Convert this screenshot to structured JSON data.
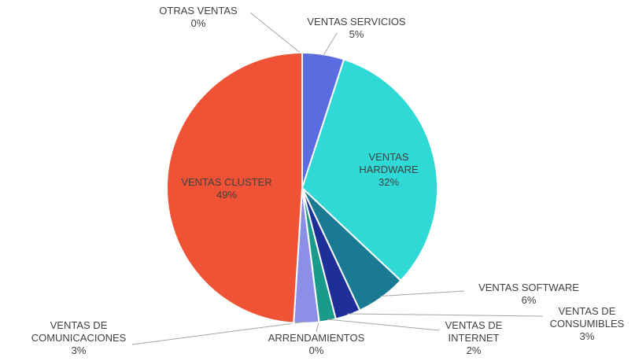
{
  "chart_data": {
    "type": "pie",
    "categories": [
      "OTRAS VENTAS",
      "VENTAS SERVICIOS",
      "VENTAS HARDWARE",
      "VENTAS SOFTWARE",
      "VENTAS DE CONSUMIBLES",
      "VENTAS DE INTERNET",
      "ARRENDAMIENTOS",
      "VENTAS DE COMUNICACIONES",
      "VENTAS CLUSTER"
    ],
    "values": [
      0,
      5,
      32,
      6,
      3,
      2,
      0,
      3,
      49
    ],
    "value_labels": [
      "0%",
      "5%",
      "32%",
      "6%",
      "3%",
      "2%",
      "0%",
      "3%",
      "49%"
    ],
    "colors": [
      "#a5a5a5",
      "#5b6be0",
      "#2fd9d6",
      "#1a7a94",
      "#1f2f9a",
      "#1a9a8a",
      "#6f6fd0",
      "#8c8fe8",
      "#ef5234"
    ]
  }
}
